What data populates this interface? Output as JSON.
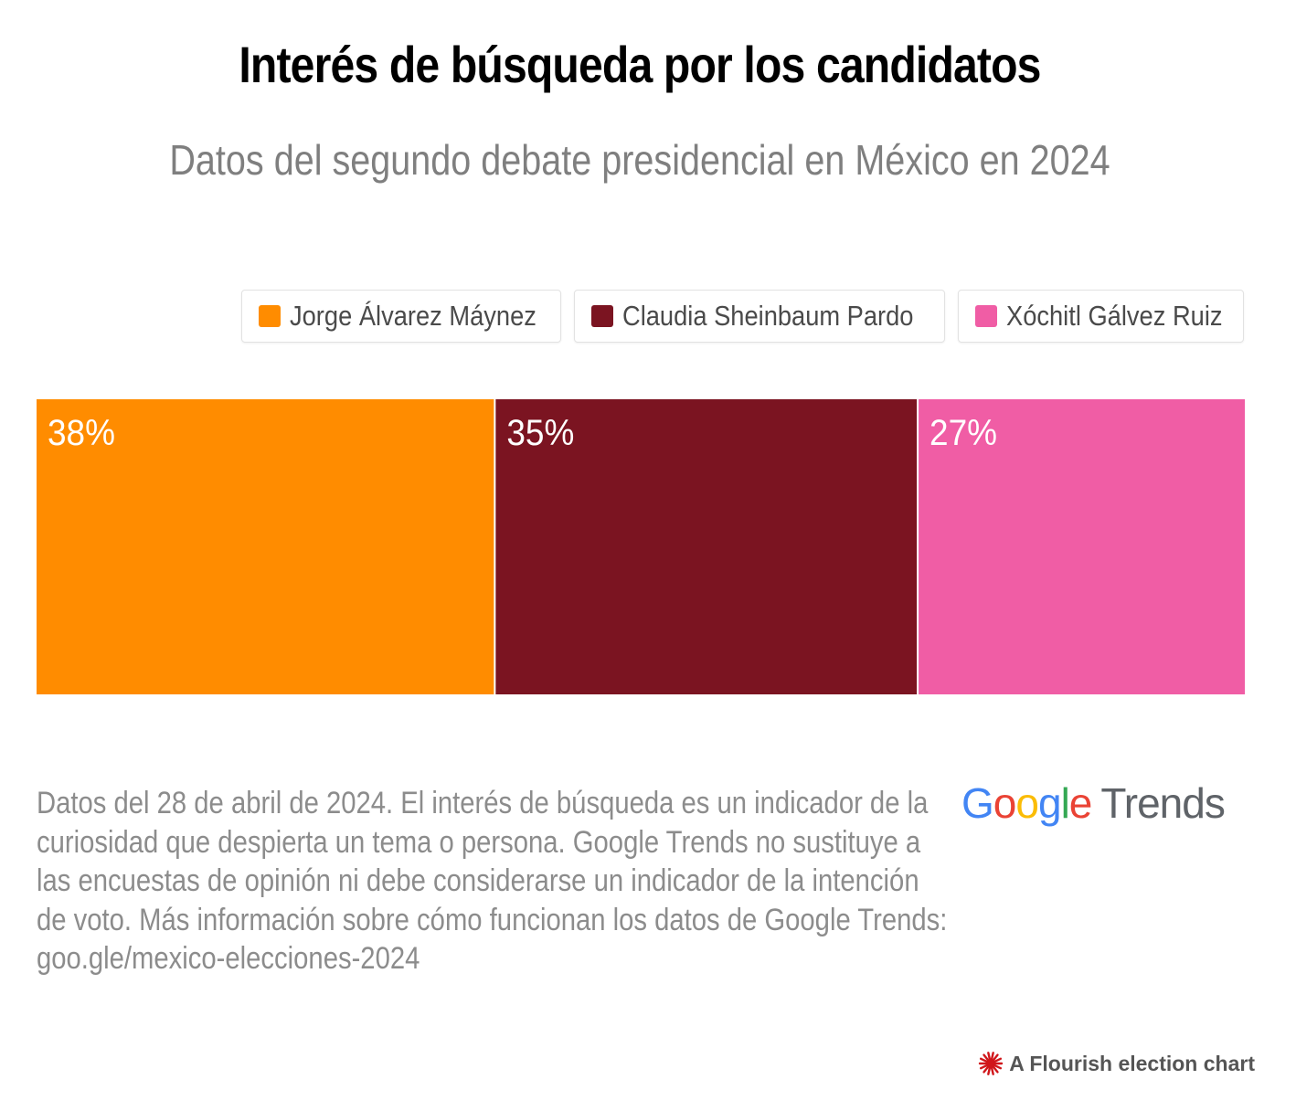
{
  "title": "Interés de búsqueda por los candidatos",
  "subtitle": "Datos del segundo debate presidencial en México en 2024",
  "legend": [
    {
      "label": "Jorge Álvarez Máynez",
      "color": "#ff8c00"
    },
    {
      "label": "Claudia Sheinbaum Pardo",
      "color": "#7b1421"
    },
    {
      "label": "Xóchitl Gálvez Ruiz",
      "color": "#f05da5"
    }
  ],
  "chart_data": {
    "type": "bar",
    "stacked": true,
    "orientation": "horizontal",
    "title": "Interés de búsqueda por los candidatos",
    "subtitle": "Datos del segundo debate presidencial en México en 2024",
    "legend_position": "top-right",
    "series": [
      {
        "name": "Jorge Álvarez Máynez",
        "values": [
          38
        ],
        "label": "38%",
        "color": "#ff8c00"
      },
      {
        "name": "Claudia Sheinbaum Pardo",
        "values": [
          35
        ],
        "label": "35%",
        "color": "#7b1421"
      },
      {
        "name": "Xóchitl Gálvez Ruiz",
        "values": [
          27
        ],
        "label": "27%",
        "color": "#f05da5"
      }
    ],
    "xlim": [
      0,
      100
    ]
  },
  "footnote": "Datos del 28 de abril de 2024. El interés de búsqueda es un indicador de la curiosidad que despierta un tema o persona. Google Trends no sustituye a las encuestas de opinión ni debe considerarse un indicador de la intención de voto. Más información sobre cómo funcionan los datos de Google Trends: goo.gle/mexico-elecciones-2024",
  "logo": {
    "letters": [
      "G",
      "o",
      "o",
      "g",
      "l",
      "e"
    ],
    "word": "Trends"
  },
  "credit": "A Flourish election chart",
  "colors": {
    "accent_credit": "#d0161a"
  }
}
